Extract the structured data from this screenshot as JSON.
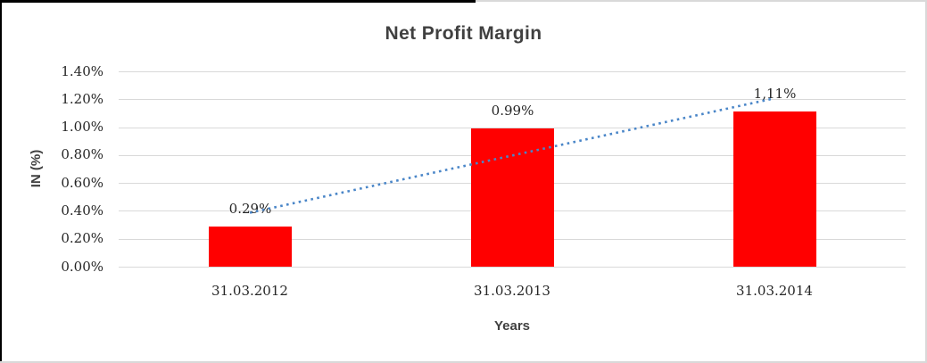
{
  "chart_data": {
    "type": "bar",
    "title": "Net Profit Margin",
    "categories": [
      "31.03.2012",
      "31.03.2013",
      "31.03.2014"
    ],
    "values": [
      0.29,
      0.99,
      1.11
    ],
    "data_labels": [
      "0.29%",
      "0.99%",
      "1,11%"
    ],
    "xlabel": "Years",
    "ylabel": "IN (%)",
    "ylim": [
      0,
      1.4
    ],
    "ytick_labels": [
      "1.40%",
      "1.20%",
      "1.00%",
      "0.80%",
      "0.60%",
      "0.40%",
      "0.20%",
      "0.00%"
    ],
    "grid": true,
    "legend": false,
    "bar_color": "#ff0000",
    "gridline_color": "#d9d9d9",
    "trendline": {
      "type": "linear",
      "style": "dotted",
      "color": "#4a86c8"
    }
  }
}
